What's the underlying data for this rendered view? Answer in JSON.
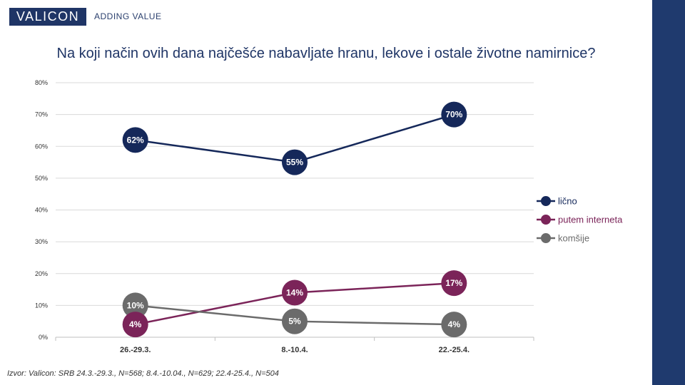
{
  "brand": {
    "name": "VALICON",
    "tagline": "ADDING VALUE"
  },
  "chart_data": {
    "type": "line",
    "title": "Na koji način ovih dana najčešće nabavljate hranu, lekove i ostale životne namirnice?",
    "categories": [
      "26.-29.3.",
      "8.-10.4.",
      "22.-25.4."
    ],
    "ylim": [
      0,
      80
    ],
    "yticks": [
      "0%",
      "10%",
      "20%",
      "30%",
      "40%",
      "50%",
      "60%",
      "70%",
      "80%"
    ],
    "grid": true,
    "legend_position": "right",
    "series": [
      {
        "name": "lično",
        "color": "#15285a",
        "values": [
          62,
          55,
          70
        ],
        "labels": [
          "62%",
          "55%",
          "70%"
        ]
      },
      {
        "name": "putem interneta",
        "color": "#7b2459",
        "values": [
          4,
          14,
          17
        ],
        "labels": [
          "4%",
          "14%",
          "17%"
        ]
      },
      {
        "name": "komšije",
        "color": "#6b6b6b",
        "values": [
          10,
          5,
          4
        ],
        "labels": [
          "10%",
          "5%",
          "4%"
        ]
      }
    ]
  },
  "source": "Izvor: Valicon: SRB 24.3.-29.3., N=568; 8.4.-10.04., N=629; 22.4-25.4., N=504"
}
